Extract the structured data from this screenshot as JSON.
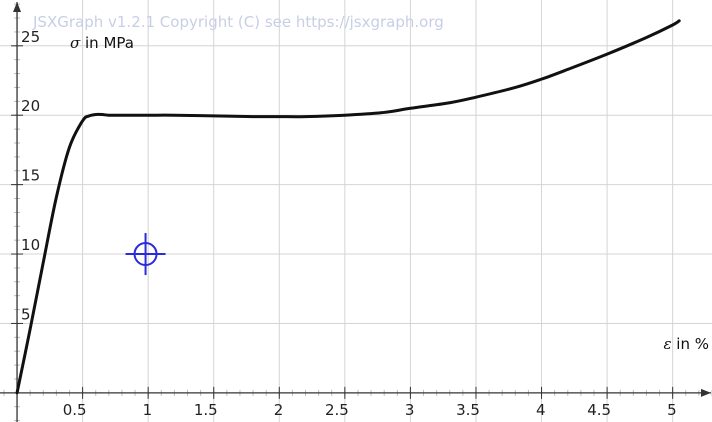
{
  "watermark": "JSXGraph v1.2.1 Copyright (C) see https://jsxgraph.org",
  "chart_data": {
    "type": "line",
    "xlabel": {
      "symbol": "ε",
      "text": " in %"
    },
    "ylabel": {
      "symbol": "σ",
      "text": " in MPa"
    },
    "xlim": [
      -0.13,
      5.3
    ],
    "ylim": [
      -2.1,
      28.3
    ],
    "grid": true,
    "x_ticks": [
      0.5,
      1,
      1.5,
      2,
      2.5,
      3,
      3.5,
      4,
      4.5,
      5
    ],
    "x_tick_labels": [
      "0.5",
      "1",
      "1.5",
      "2",
      "2.5",
      "3",
      "3.5",
      "4",
      "4.5",
      "5"
    ],
    "y_ticks": [
      5,
      10,
      15,
      20,
      25
    ],
    "y_tick_labels": [
      "5",
      "10",
      "15",
      "20",
      "25"
    ],
    "series": [
      {
        "color": "#111111",
        "x": [
          0,
          0.1,
          0.2,
          0.3,
          0.4,
          0.5,
          0.55,
          0.6,
          0.65,
          0.7,
          0.8,
          1.0,
          1.2,
          1.5,
          1.8,
          2.0,
          2.2,
          2.5,
          2.8,
          3.0,
          3.3,
          3.5,
          3.8,
          4.0,
          4.2,
          4.5,
          4.8,
          5.0,
          5.05
        ],
        "y": [
          0,
          4.6,
          9.4,
          14.1,
          17.7,
          19.6,
          19.95,
          20.05,
          20.05,
          20.0,
          20.0,
          20.0,
          20.0,
          19.95,
          19.9,
          19.9,
          19.9,
          20.0,
          20.2,
          20.5,
          20.9,
          21.3,
          22.0,
          22.6,
          23.3,
          24.4,
          25.6,
          26.5,
          26.8
        ]
      }
    ],
    "point": {
      "x": 0.98,
      "y": 10.0,
      "color": "#2b2bd9"
    },
    "axis_color": "#333333",
    "grid_color": "#d4d4d4"
  }
}
